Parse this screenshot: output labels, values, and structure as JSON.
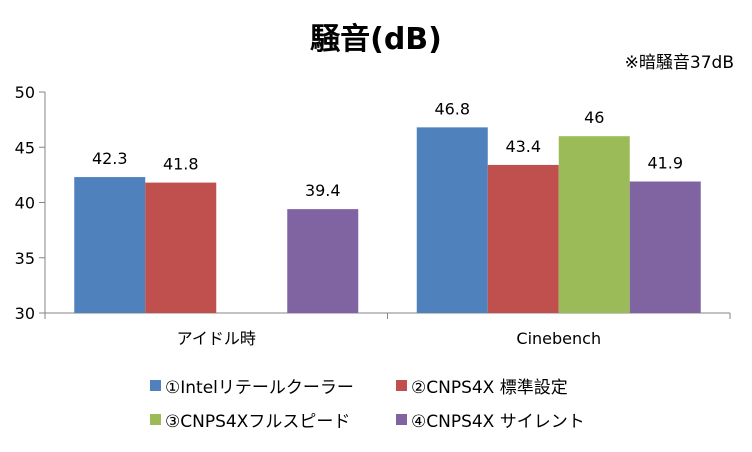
{
  "chart_data": {
    "type": "bar",
    "title": "騒音(dB)",
    "subtitle": "※暗騒音37dB",
    "categories": [
      "アイドル時",
      "Cinebench"
    ],
    "ylim": [
      30,
      50
    ],
    "yticks": [
      30,
      35,
      40,
      45,
      50
    ],
    "grid": false,
    "legend_position": "bottom",
    "series": [
      {
        "name": "①Intelリテールクーラー",
        "color": "#4f81bd",
        "values": [
          42.3,
          46.8
        ],
        "labels": [
          "42.3",
          "46.8"
        ]
      },
      {
        "name": "②CNPS4X 標準設定",
        "color": "#c0504d",
        "values": [
          41.8,
          43.4
        ],
        "labels": [
          "41.8",
          "43.4"
        ]
      },
      {
        "name": "③CNPS4Xフルスピード",
        "color": "#9bbb59",
        "values": [
          null,
          46
        ],
        "labels": [
          null,
          "46"
        ]
      },
      {
        "name": "④CNPS4X サイレント",
        "color": "#8064a2",
        "values": [
          39.4,
          41.9
        ],
        "labels": [
          "39.4",
          "41.9"
        ]
      }
    ]
  }
}
